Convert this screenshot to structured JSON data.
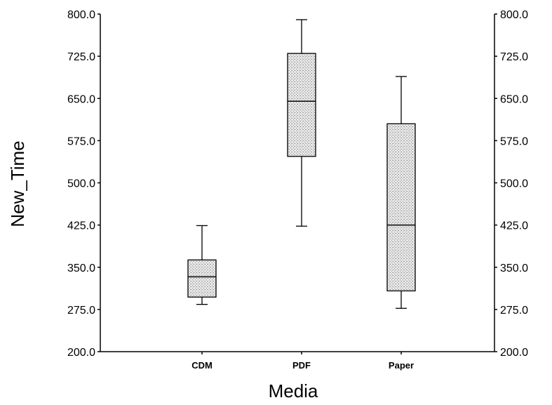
{
  "chart_data": {
    "type": "box",
    "xlabel": "Media",
    "ylabel": "New_Time",
    "ylim": [
      200.0,
      800.0
    ],
    "yticks": [
      "200.0",
      "275.0",
      "350.0",
      "425.0",
      "500.0",
      "575.0",
      "650.0",
      "725.0",
      "800.0"
    ],
    "categories": [
      "CDM",
      "PDF",
      "Paper"
    ],
    "boxes": [
      {
        "category": "CDM",
        "min": 284,
        "q1": 297,
        "median": 333,
        "q3": 363,
        "max": 424
      },
      {
        "category": "PDF",
        "min": 423,
        "q1": 547,
        "median": 645,
        "q3": 730,
        "max": 790
      },
      {
        "category": "Paper",
        "min": 277,
        "q1": 308,
        "median": 425,
        "q3": 605,
        "max": 689
      }
    ],
    "grid": false,
    "secondary_y_axis": true,
    "box_fill": "#d9d9d9"
  }
}
